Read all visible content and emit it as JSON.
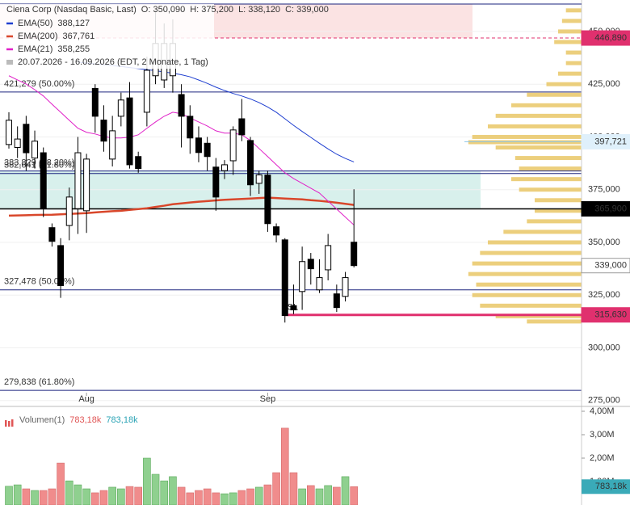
{
  "chart_data": {
    "type": "candlestick",
    "header": {
      "title": "Ciena Corp (Nasdaq Basic, Last)",
      "ohlc": [
        "O: 350,090",
        "H: 375,200",
        "L: 338,120",
        "C: 339,000"
      ],
      "range": "20.07.2026 - 16.09.2026  (EDT, 2 Monate, 1 Tag)"
    },
    "categories": [
      null,
      null,
      null,
      null,
      null,
      null,
      null,
      null,
      null,
      "Aug",
      null,
      null,
      null,
      null,
      null,
      null,
      null,
      null,
      null,
      null,
      null,
      null,
      null,
      null,
      null,
      null,
      null,
      null,
      null,
      null,
      "Sep",
      null,
      null,
      null,
      null,
      null,
      null,
      null,
      null,
      null,
      null
    ],
    "open": [
      396400,
      395000,
      406000,
      390000,
      392500,
      357000,
      348500,
      358000,
      366000,
      365000,
      423000,
      408000,
      389500,
      409800,
      418500,
      390700,
      411700,
      429000,
      427000,
      429000,
      420100,
      409800,
      399500,
      397000,
      385700,
      384000,
      388700,
      408600,
      398300,
      378000,
      381900,
      357400,
      351200,
      320000,
      326700,
      342000,
      327500,
      337000,
      325600,
      324400,
      350090
    ],
    "high": [
      411700,
      405000,
      410000,
      403000,
      395000,
      359000,
      352000,
      376000,
      400000,
      392000,
      425000,
      415000,
      410000,
      421000,
      426000,
      393000,
      438000,
      460000,
      453800,
      455700,
      425000,
      415000,
      405000,
      400000,
      390000,
      389000,
      405000,
      418000,
      400000,
      384000,
      384000,
      359000,
      352000,
      330000,
      348000,
      345000,
      342000,
      354000,
      330000,
      336000,
      375200
    ],
    "low": [
      394500,
      390000,
      384000,
      385000,
      362000,
      348000,
      323700,
      351000,
      354000,
      354500,
      402000,
      393000,
      386000,
      405000,
      385000,
      383000,
      405000,
      425000,
      423200,
      421000,
      395000,
      392000,
      388000,
      384000,
      365000,
      380000,
      382000,
      398000,
      372000,
      373000,
      355000,
      350000,
      312000,
      316000,
      318000,
      330000,
      326000,
      332000,
      317000,
      322000,
      338120
    ],
    "close": [
      407900,
      399000,
      392500,
      398000,
      366000,
      350500,
      329500,
      371500,
      392500,
      389500,
      409800,
      398000,
      402900,
      417500,
      386800,
      385000,
      431600,
      444300,
      444300,
      444300,
      409800,
      399500,
      392600,
      390700,
      371500,
      386800,
      403300,
      401000,
      377300,
      382000,
      358900,
      353500,
      315300,
      318000,
      340900,
      337500,
      333300,
      348500,
      319100,
      333300,
      339000
    ],
    "up_color": "#ffffff",
    "down_color": "#000000",
    "series": [
      {
        "name": "EMA(50)",
        "color": "#1f3fd0",
        "last_label": "388,127",
        "values": [
          null,
          null,
          null,
          null,
          null,
          null,
          null,
          null,
          435500,
          435000,
          434600,
          434200,
          433800,
          433400,
          432900,
          432400,
          431900,
          431400,
          430800,
          430200,
          429500,
          428500,
          427000,
          425400,
          423600,
          422000,
          420600,
          419400,
          418000,
          416300,
          414200,
          411700,
          408600,
          405500,
          402600,
          399800,
          397000,
          394300,
          391800,
          389800,
          388127
        ]
      },
      {
        "name": "EMA(200)",
        "color": "#d9472b",
        "last_label": "367,761",
        "values": [
          362700,
          362800,
          362900,
          363000,
          363050,
          363100,
          363300,
          363500,
          363700,
          363900,
          364200,
          364500,
          364800,
          365000,
          365400,
          365800,
          366200,
          366800,
          367400,
          368100,
          368500,
          368900,
          369300,
          369600,
          369900,
          370200,
          370400,
          370600,
          370800,
          371000,
          371200,
          371000,
          370800,
          370600,
          370400,
          370000,
          369700,
          369300,
          368800,
          368300,
          367761
        ]
      },
      {
        "name": "EMA(21)",
        "color": "#e020c8",
        "last_label": "358,255",
        "values": [
          429000,
          427000,
          425100,
          422400,
          419400,
          415500,
          411700,
          407900,
          404100,
          402200,
          401400,
          400200,
          399500,
          399500,
          399900,
          401000,
          404100,
          407100,
          409800,
          411700,
          411000,
          409000,
          407100,
          405200,
          402900,
          401800,
          401800,
          401000,
          398300,
          394500,
          390700,
          386800,
          383000,
          380300,
          378000,
          375700,
          373400,
          369600,
          365800,
          362000,
          358255
        ]
      }
    ],
    "ylim": [
      273000,
      463000
    ],
    "yticks": [
      {
        "value": 275000,
        "label": "275,000"
      },
      {
        "value": 300000,
        "label": "300,000"
      },
      {
        "value": 325000,
        "label": "325,000"
      },
      {
        "value": 350000,
        "label": "350,000"
      },
      {
        "value": 375000,
        "label": "375,000"
      },
      {
        "value": 400000,
        "label": "400,000"
      },
      {
        "value": 425000,
        "label": "425,000"
      },
      {
        "value": 450000,
        "label": "450,000"
      }
    ],
    "grid": true,
    "levels": [
      {
        "value": 446890,
        "label": "446,890",
        "color": "#e0306e",
        "text_color": "#ffffff",
        "style": "dashed"
      },
      {
        "value": 397721,
        "label": "397,721",
        "color": "#dff0fb",
        "text_color": "#1a2a4a",
        "style": "short"
      },
      {
        "value": 365900,
        "label": "365,900",
        "color": "#000000",
        "text_color": "#ffffff",
        "style": "solid"
      },
      {
        "value": 339000,
        "label": "339,000",
        "color": "#ffffff",
        "text_color": "#000000",
        "style": "none"
      },
      {
        "value": 315630,
        "label": "315,630",
        "color": "#e0306e",
        "text_color": "#ffffff",
        "style": "sl"
      }
    ],
    "fib": [
      {
        "value": 421279,
        "label": "421,279 (50.00%)"
      },
      {
        "value": 383829,
        "label": "383,829 (38.20%)"
      },
      {
        "value": 382641,
        "label": "382,641 (61.80%)"
      },
      {
        "value": 327478,
        "label": "327,478 (50.00%)"
      },
      {
        "value": 279838,
        "label": "279,838 (61.80%)"
      }
    ],
    "zones": [
      {
        "from": 446890,
        "to": 463000,
        "color": "#fbe3e3"
      },
      {
        "from": 365900,
        "to": 384000,
        "color": "#d8f0ec"
      }
    ],
    "sl_label": "SL",
    "volume_profile": {
      "color": "#e9c766",
      "xlim": [
        0,
        150
      ],
      "prices": [
        460000,
        455000,
        450000,
        445000,
        440000,
        435000,
        430000,
        425000,
        420000,
        415000,
        410000,
        405000,
        400000,
        397500,
        395000,
        390000,
        385000,
        380000,
        375000,
        370000,
        365000,
        360000,
        355000,
        350000,
        345000,
        340000,
        335000,
        330000,
        325000,
        320000,
        315000,
        312500
      ],
      "volumes": [
        20,
        25,
        30,
        35,
        20,
        20,
        30,
        45,
        70,
        90,
        110,
        120,
        140,
        145,
        110,
        85,
        80,
        90,
        80,
        60,
        60,
        70,
        100,
        120,
        130,
        140,
        145,
        135,
        140,
        130,
        110,
        70
      ]
    },
    "volume": {
      "name": "Volumen(1)",
      "legend_values": [
        "783,18k",
        "783,18k"
      ],
      "last_label": "783,18k",
      "up_color": "#8fd08f",
      "down_color": "#f08c8c",
      "ylim": [
        0,
        4138000
      ],
      "yticks": [
        {
          "value": 1000000,
          "label": "1,00M"
        },
        {
          "value": 2000000,
          "label": "2,00M"
        },
        {
          "value": 3000000,
          "label": "3,00M"
        },
        {
          "value": 4000000,
          "label": "4,00M"
        }
      ],
      "values": [
        800000,
        860000,
        690000,
        620000,
        620000,
        690000,
        1790000,
        1030000,
        860000,
        690000,
        520000,
        620000,
        760000,
        690000,
        790000,
        760000,
        2000000,
        1310000,
        1030000,
        1210000,
        760000,
        520000,
        620000,
        690000,
        520000,
        480000,
        520000,
        620000,
        690000,
        760000,
        860000,
        1380000,
        3280000,
        1380000,
        690000,
        830000,
        690000,
        830000,
        760000,
        1210000,
        783180
      ]
    }
  }
}
